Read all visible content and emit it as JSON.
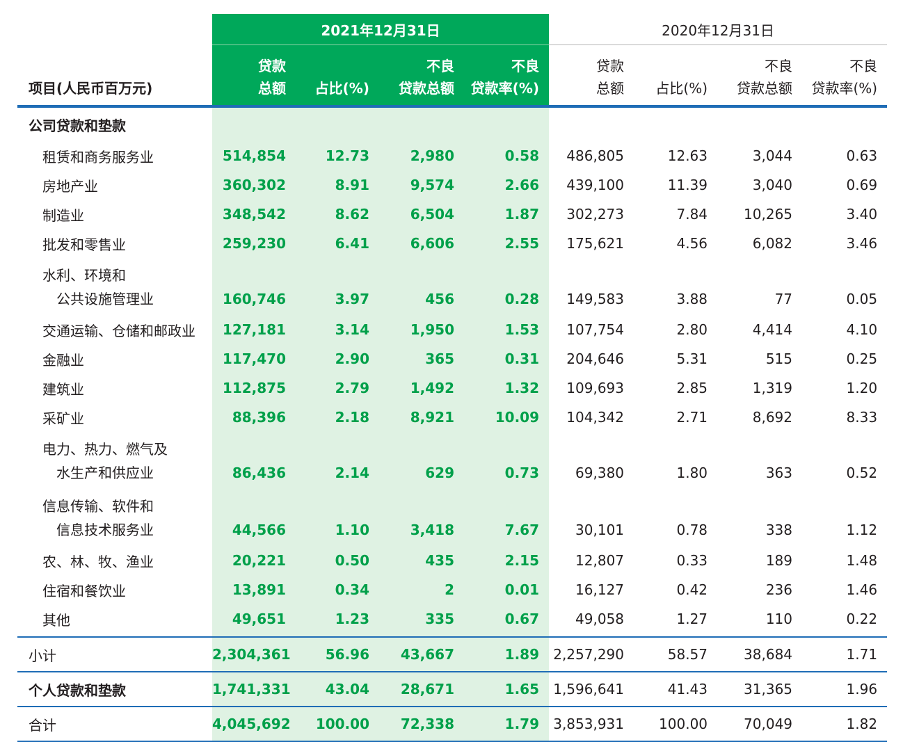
{
  "header": {
    "item_label": "项目(人民币百万元)",
    "period_2021": "2021年12月31日",
    "period_2020": "2020年12月31日",
    "col_loans_l1": "贷款",
    "col_loans_l2": "总额",
    "col_share": "占比(%)",
    "col_npl_l1": "不良",
    "col_npl_l2": "贷款总额",
    "col_nplr_l1": "不良",
    "col_nplr_l2": "贷款率(%)"
  },
  "section_corporate": "公司贷款和垫款",
  "rows": [
    {
      "label": "租赁和商务服务业",
      "v": [
        "514,854",
        "12.73",
        "2,980",
        "0.58",
        "486,805",
        "12.63",
        "3,044",
        "0.63"
      ]
    },
    {
      "label": "房地产业",
      "v": [
        "360,302",
        "8.91",
        "9,574",
        "2.66",
        "439,100",
        "11.39",
        "3,040",
        "0.69"
      ]
    },
    {
      "label": "制造业",
      "v": [
        "348,542",
        "8.62",
        "6,504",
        "1.87",
        "302,273",
        "7.84",
        "10,265",
        "3.40"
      ]
    },
    {
      "label": "批发和零售业",
      "v": [
        "259,230",
        "6.41",
        "6,606",
        "2.55",
        "175,621",
        "4.56",
        "6,082",
        "3.46"
      ]
    },
    {
      "label": "水利、环境和",
      "label2": "公共设施管理业",
      "v": [
        "160,746",
        "3.97",
        "456",
        "0.28",
        "149,583",
        "3.88",
        "77",
        "0.05"
      ]
    },
    {
      "label": "交通运输、仓储和邮政业",
      "v": [
        "127,181",
        "3.14",
        "1,950",
        "1.53",
        "107,754",
        "2.80",
        "4,414",
        "4.10"
      ]
    },
    {
      "label": "金融业",
      "v": [
        "117,470",
        "2.90",
        "365",
        "0.31",
        "204,646",
        "5.31",
        "515",
        "0.25"
      ]
    },
    {
      "label": "建筑业",
      "v": [
        "112,875",
        "2.79",
        "1,492",
        "1.32",
        "109,693",
        "2.85",
        "1,319",
        "1.20"
      ]
    },
    {
      "label": "采矿业",
      "v": [
        "88,396",
        "2.18",
        "8,921",
        "10.09",
        "104,342",
        "2.71",
        "8,692",
        "8.33"
      ]
    },
    {
      "label": "电力、热力、燃气及",
      "label2": "水生产和供应业",
      "v": [
        "86,436",
        "2.14",
        "629",
        "0.73",
        "69,380",
        "1.80",
        "363",
        "0.52"
      ]
    },
    {
      "label": "信息传输、软件和",
      "label2": "信息技术服务业",
      "v": [
        "44,566",
        "1.10",
        "3,418",
        "7.67",
        "30,101",
        "0.78",
        "338",
        "1.12"
      ]
    },
    {
      "label": "农、林、牧、渔业",
      "v": [
        "20,221",
        "0.50",
        "435",
        "2.15",
        "12,807",
        "0.33",
        "189",
        "1.48"
      ]
    },
    {
      "label": "住宿和餐饮业",
      "v": [
        "13,891",
        "0.34",
        "2",
        "0.01",
        "16,127",
        "0.42",
        "236",
        "1.46"
      ]
    },
    {
      "label": "其他",
      "v": [
        "49,651",
        "1.23",
        "335",
        "0.67",
        "49,058",
        "1.27",
        "110",
        "0.22"
      ]
    }
  ],
  "totals": [
    {
      "label": "小计",
      "v": [
        "2,304,361",
        "56.96",
        "43,667",
        "1.89",
        "2,257,290",
        "58.57",
        "38,684",
        "1.71"
      ]
    },
    {
      "label": "个人贷款和垫款",
      "v": [
        "1,741,331",
        "43.04",
        "28,671",
        "1.65",
        "1,596,641",
        "41.43",
        "31,365",
        "1.96"
      ]
    },
    {
      "label": "合计",
      "v": [
        "4,045,692",
        "100.00",
        "72,338",
        "1.79",
        "3,853,931",
        "100.00",
        "70,049",
        "1.82"
      ]
    }
  ],
  "colors": {
    "highlight_header": "#00a85a",
    "highlight_column": "#dff2e3",
    "highlight_text": "#00a04a",
    "rule": "#1f6db6"
  }
}
